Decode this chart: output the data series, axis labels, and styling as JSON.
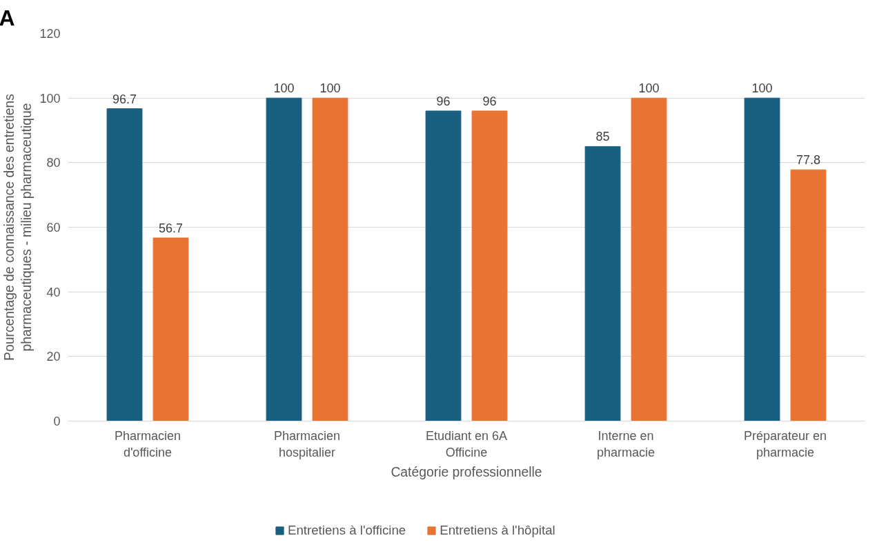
{
  "chart_data": {
    "type": "bar",
    "xlabel": "Catégorie professionnelle",
    "ylabel": "Pourcentage de connaissance des entretiens\npharmaceutiques - milieu pharmaceutique",
    "annotations": [
      "A"
    ],
    "categories": [
      "Pharmacien\nd'officine",
      "Pharmacien\nhospitalier",
      "Etudiant en 6A\nOfficine",
      "Interne en\npharmacie",
      "Préparateur en\npharmacie"
    ],
    "series": [
      {
        "name": "Entretiens à l'officine",
        "color": "#185f80",
        "values": [
          96.7,
          100,
          96,
          85,
          100
        ]
      },
      {
        "name": "Entretiens à l'hôpital",
        "color": "#e97332",
        "values": [
          56.7,
          100,
          96,
          100,
          77.8
        ]
      }
    ],
    "ylim": [
      0,
      120
    ],
    "yticks": [
      0,
      20,
      40,
      60,
      80,
      100,
      120
    ],
    "grid": "y",
    "legend": "bottom",
    "data_labels": true
  }
}
